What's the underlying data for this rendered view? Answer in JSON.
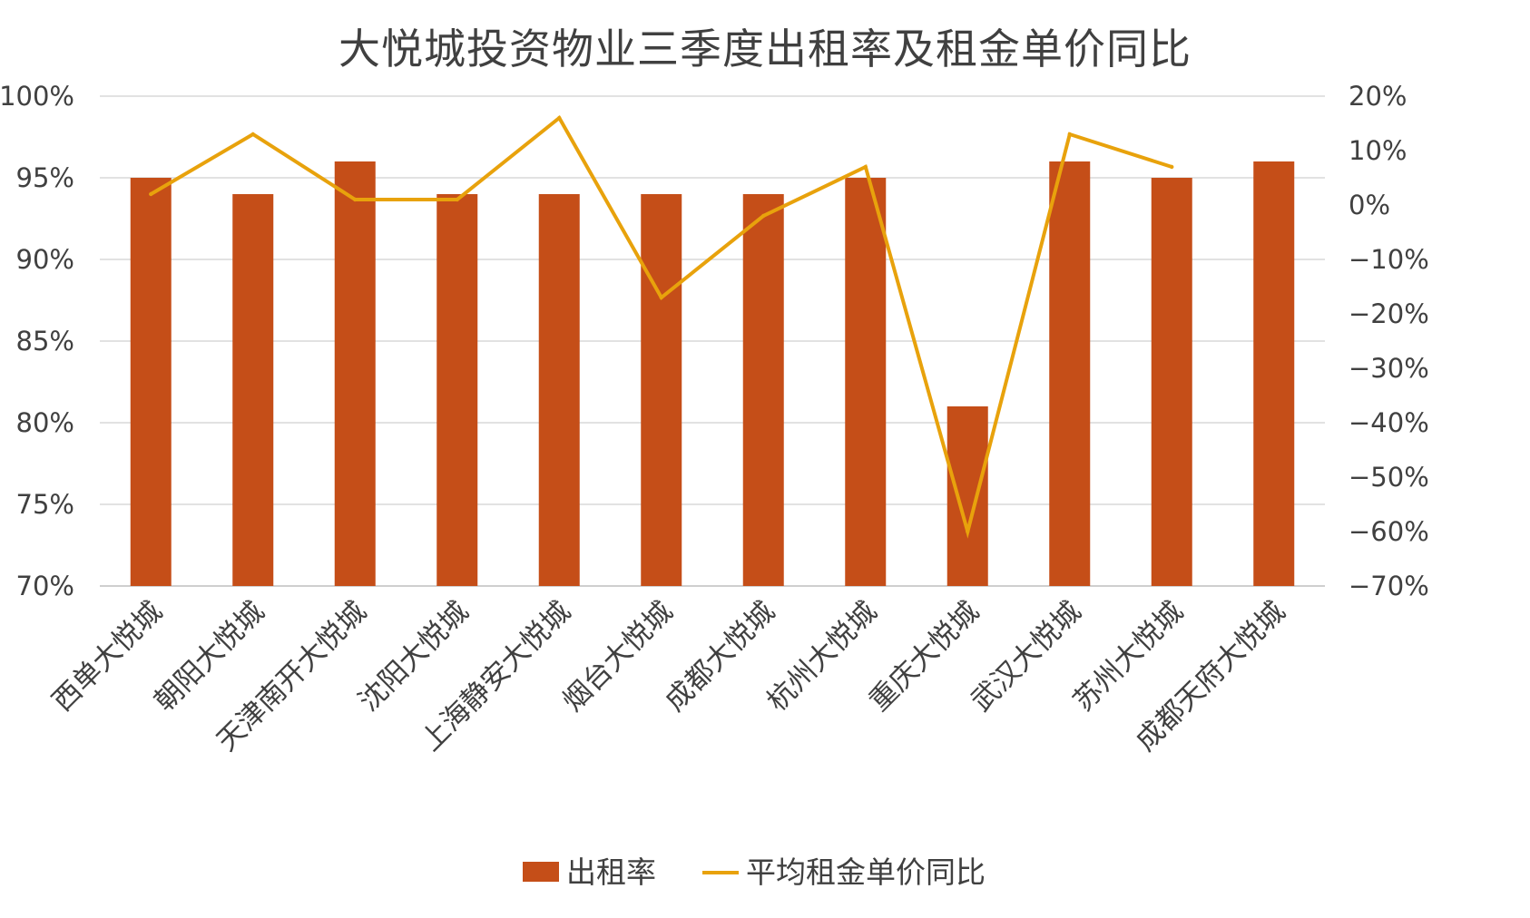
{
  "chart_data": {
    "type": "bar",
    "title": "大悦城投资物业三季度出租率及租金单价同比",
    "categories": [
      "西单大悦城",
      "朝阳大悦城",
      "天津南开大悦城",
      "沈阳大悦城",
      "上海静安大悦城",
      "烟台大悦城",
      "成都大悦城",
      "杭州大悦城",
      "重庆大悦城",
      "武汉大悦城",
      "苏州大悦城",
      "成都天府大悦城"
    ],
    "series": [
      {
        "name": "出租率",
        "type": "bar",
        "axis": "left",
        "color": "#C54E18",
        "values": [
          95,
          94,
          96,
          94,
          94,
          94,
          94,
          95,
          81,
          96,
          95,
          96
        ]
      },
      {
        "name": "平均租金单价同比",
        "type": "line",
        "axis": "right",
        "color": "#E8A20C",
        "values": [
          2,
          13,
          1,
          1,
          16,
          -17,
          -2,
          7,
          -60,
          13,
          7,
          null
        ]
      }
    ],
    "ylim_left": [
      70,
      100
    ],
    "ylim_right": [
      -70,
      20
    ],
    "yticks_left": [
      "70%",
      "75%",
      "80%",
      "85%",
      "90%",
      "95%",
      "100%"
    ],
    "yticks_right": [
      "-70%",
      "-60%",
      "-50%",
      "-40%",
      "-30%",
      "-20%",
      "-10%",
      "0%",
      "10%",
      "20%"
    ],
    "grid": true,
    "legend_position": "bottom"
  }
}
